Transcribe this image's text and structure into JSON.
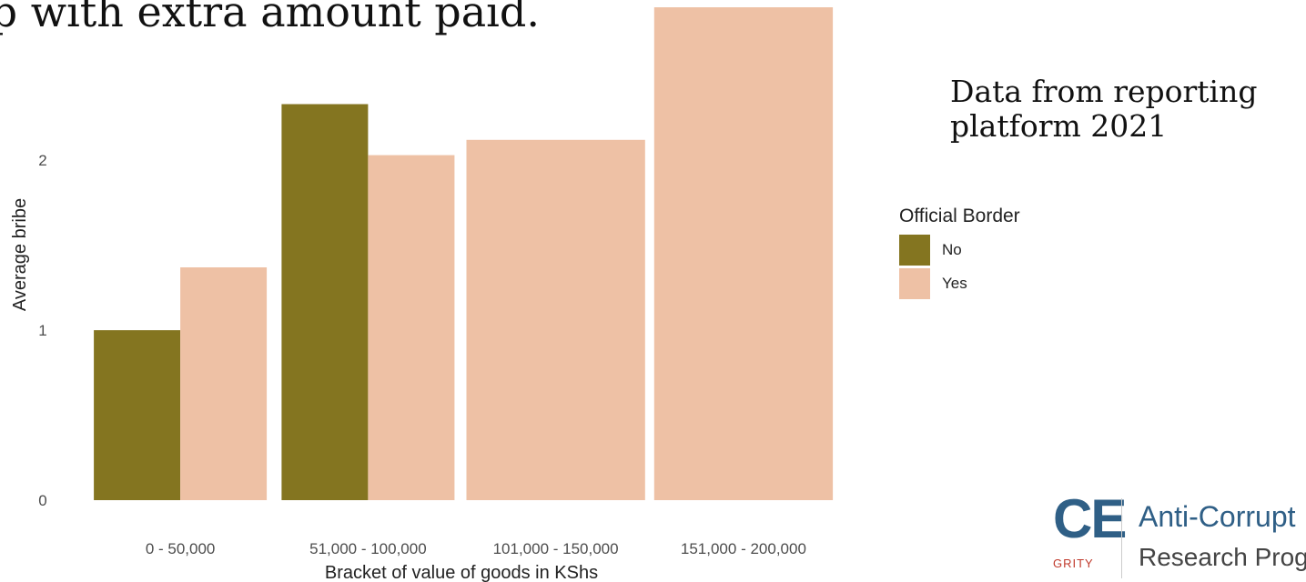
{
  "title": "up with extra amount paid.",
  "note": "Data from reporting platform 2021",
  "chart_data": {
    "type": "bar",
    "categories": [
      "0 - 50,000",
      "51,000 - 100,000",
      "101,000 - 150,000",
      "151,000 - 200,000"
    ],
    "series": [
      {
        "name": "No",
        "color": "#847520",
        "values": [
          1.0,
          2.33,
          null,
          null
        ]
      },
      {
        "name": "Yes",
        "color": "#eec1a5",
        "values": [
          1.37,
          2.03,
          2.12,
          2.9
        ]
      }
    ],
    "xlabel": "Bracket of value of goods in KShs",
    "ylabel": "Average bribe",
    "yticks": [
      0,
      1,
      2
    ],
    "ylim": [
      0,
      2.9
    ],
    "grid": false,
    "legend": {
      "title": "Official Border",
      "position": "right"
    }
  },
  "logo": {
    "mark": "CE",
    "sub": "GRITY",
    "line1": "Anti-Corrupt",
    "line2": "Research Prog"
  }
}
